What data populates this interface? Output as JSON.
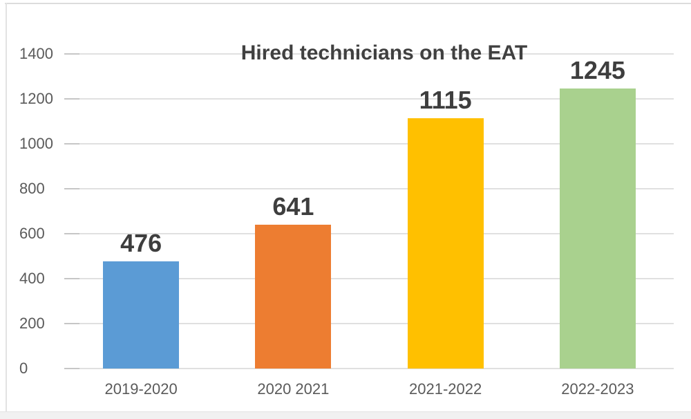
{
  "chart_data": {
    "type": "bar",
    "title": "Hired technicians on the EAT",
    "categories": [
      "2019-2020",
      "2020 2021",
      "2021-2022",
      "2022-2023"
    ],
    "values": [
      476,
      641,
      1115,
      1245
    ],
    "data_labels": [
      "476",
      "641",
      "1115",
      "1245"
    ],
    "bar_colors": [
      "#5B9BD5",
      "#ED7D31",
      "#FFC000",
      "#A9D18E"
    ],
    "xlabel": "",
    "ylabel": "",
    "ylim": [
      0,
      1400
    ],
    "yticks": [
      0,
      200,
      400,
      600,
      800,
      1000,
      1200,
      1400
    ],
    "ytick_labels": [
      "0",
      "200",
      "400",
      "600",
      "800",
      "1000",
      "1200",
      "1400"
    ],
    "grid": true,
    "legend_position": "none"
  },
  "colors": {
    "gridline": "#e0e0e0",
    "tick": "#c6c6c6",
    "axis_label_text": "#5a5a5a",
    "title_text": "#404040",
    "value_label_text": "#3e3e3e",
    "frame_border": "#dcdcdc",
    "footer_strip": "#f1f1f1",
    "background": "#ffffff"
  }
}
